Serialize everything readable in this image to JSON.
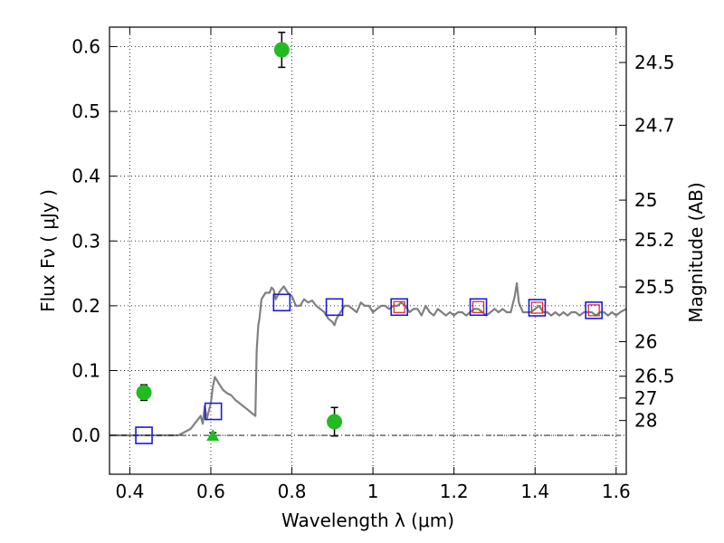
{
  "chart_data": {
    "type": "scatter",
    "xlabel": "Wavelength  λ (μm)",
    "ylabel": "Flux  Fν  ( μJy )",
    "y2label": "Magnitude (AB)",
    "xlim": [
      0.35,
      1.625
    ],
    "ylim": [
      -0.06,
      0.63
    ],
    "grid": true,
    "x_ticks": [
      {
        "value": 0.4,
        "label": "0.4"
      },
      {
        "value": 0.6,
        "label": "0.6"
      },
      {
        "value": 0.8,
        "label": "0.8"
      },
      {
        "value": 1.0,
        "label": "1"
      },
      {
        "value": 1.2,
        "label": "1.2"
      },
      {
        "value": 1.4,
        "label": "1.4"
      },
      {
        "value": 1.6,
        "label": "1.6"
      }
    ],
    "y_ticks": [
      {
        "value": 0.0,
        "label": "0.0"
      },
      {
        "value": 0.1,
        "label": "0.1"
      },
      {
        "value": 0.2,
        "label": "0.2"
      },
      {
        "value": 0.3,
        "label": "0.3"
      },
      {
        "value": 0.4,
        "label": "0.4"
      },
      {
        "value": 0.5,
        "label": "0.5"
      },
      {
        "value": 0.6,
        "label": "0.6"
      }
    ],
    "mag_ticks": [
      {
        "value": 24.5,
        "label": "24.5"
      },
      {
        "value": 24.7,
        "label": "24.7"
      },
      {
        "value": 25.0,
        "label": "25"
      },
      {
        "value": 25.2,
        "label": "25.2"
      },
      {
        "value": 25.5,
        "label": "25.5"
      },
      {
        "value": 26.0,
        "label": "26"
      },
      {
        "value": 26.5,
        "label": "26.5"
      },
      {
        "value": 27.0,
        "label": "27"
      },
      {
        "value": 28.0,
        "label": "28"
      }
    ],
    "colors": {
      "model": "#808080",
      "observed": "#22bb22",
      "model_phot": "#1a1adf",
      "model_phot_inner": "#dd2222",
      "errorbar": "#000000",
      "zero_line": "#000000"
    },
    "series": [
      {
        "type": "line",
        "points": [
          [
            0.35,
            0.0
          ],
          [
            0.52,
            0.0
          ],
          [
            0.535,
            0.005
          ],
          [
            0.55,
            0.01
          ],
          [
            0.565,
            0.022
          ],
          [
            0.575,
            0.03
          ],
          [
            0.58,
            0.018
          ],
          [
            0.585,
            0.045
          ],
          [
            0.59,
            0.025
          ],
          [
            0.6,
            0.05
          ],
          [
            0.605,
            0.075
          ],
          [
            0.61,
            0.09
          ],
          [
            0.62,
            0.08
          ],
          [
            0.63,
            0.07
          ],
          [
            0.64,
            0.065
          ],
          [
            0.65,
            0.062
          ],
          [
            0.66,
            0.055
          ],
          [
            0.67,
            0.05
          ],
          [
            0.68,
            0.045
          ],
          [
            0.69,
            0.04
          ],
          [
            0.7,
            0.035
          ],
          [
            0.71,
            0.03
          ],
          [
            0.713,
            0.13
          ],
          [
            0.717,
            0.17
          ],
          [
            0.72,
            0.18
          ],
          [
            0.725,
            0.21
          ],
          [
            0.735,
            0.22
          ],
          [
            0.745,
            0.22
          ],
          [
            0.75,
            0.228
          ],
          [
            0.755,
            0.225
          ],
          [
            0.76,
            0.21
          ],
          [
            0.77,
            0.222
          ],
          [
            0.78,
            0.23
          ],
          [
            0.79,
            0.22
          ],
          [
            0.8,
            0.215
          ],
          [
            0.81,
            0.2
          ],
          [
            0.82,
            0.2
          ],
          [
            0.83,
            0.21
          ],
          [
            0.84,
            0.205
          ],
          [
            0.85,
            0.208
          ],
          [
            0.86,
            0.2
          ],
          [
            0.87,
            0.195
          ],
          [
            0.88,
            0.19
          ],
          [
            0.89,
            0.18
          ],
          [
            0.9,
            0.175
          ],
          [
            0.905,
            0.17
          ],
          [
            0.91,
            0.18
          ],
          [
            0.92,
            0.19
          ],
          [
            0.93,
            0.2
          ],
          [
            0.94,
            0.2
          ],
          [
            0.95,
            0.195
          ],
          [
            0.96,
            0.19
          ],
          [
            0.97,
            0.205
          ],
          [
            0.98,
            0.2
          ],
          [
            0.99,
            0.2
          ],
          [
            1.0,
            0.19
          ],
          [
            1.01,
            0.195
          ],
          [
            1.02,
            0.2
          ],
          [
            1.03,
            0.2
          ],
          [
            1.04,
            0.195
          ],
          [
            1.05,
            0.2
          ],
          [
            1.06,
            0.2
          ],
          [
            1.07,
            0.205
          ],
          [
            1.08,
            0.2
          ],
          [
            1.09,
            0.19
          ],
          [
            1.1,
            0.195
          ],
          [
            1.11,
            0.195
          ],
          [
            1.12,
            0.185
          ],
          [
            1.13,
            0.2
          ],
          [
            1.14,
            0.19
          ],
          [
            1.15,
            0.185
          ],
          [
            1.16,
            0.195
          ],
          [
            1.17,
            0.19
          ],
          [
            1.18,
            0.185
          ],
          [
            1.19,
            0.19
          ],
          [
            1.2,
            0.185
          ],
          [
            1.21,
            0.19
          ],
          [
            1.22,
            0.19
          ],
          [
            1.23,
            0.185
          ],
          [
            1.24,
            0.19
          ],
          [
            1.25,
            0.195
          ],
          [
            1.26,
            0.195
          ],
          [
            1.27,
            0.19
          ],
          [
            1.28,
            0.185
          ],
          [
            1.29,
            0.19
          ],
          [
            1.3,
            0.195
          ],
          [
            1.31,
            0.19
          ],
          [
            1.32,
            0.195
          ],
          [
            1.33,
            0.19
          ],
          [
            1.34,
            0.19
          ],
          [
            1.35,
            0.215
          ],
          [
            1.355,
            0.235
          ],
          [
            1.36,
            0.205
          ],
          [
            1.37,
            0.19
          ],
          [
            1.38,
            0.19
          ],
          [
            1.39,
            0.19
          ],
          [
            1.4,
            0.195
          ],
          [
            1.41,
            0.2
          ],
          [
            1.42,
            0.19
          ],
          [
            1.43,
            0.19
          ],
          [
            1.44,
            0.185
          ],
          [
            1.45,
            0.19
          ],
          [
            1.46,
            0.185
          ],
          [
            1.47,
            0.19
          ],
          [
            1.48,
            0.185
          ],
          [
            1.49,
            0.19
          ],
          [
            1.5,
            0.19
          ],
          [
            1.51,
            0.185
          ],
          [
            1.52,
            0.19
          ],
          [
            1.53,
            0.19
          ],
          [
            1.54,
            0.19
          ],
          [
            1.55,
            0.185
          ],
          [
            1.56,
            0.19
          ],
          [
            1.57,
            0.19
          ],
          [
            1.58,
            0.185
          ],
          [
            1.59,
            0.19
          ],
          [
            1.6,
            0.185
          ],
          [
            1.61,
            0.19
          ],
          [
            1.625,
            0.195
          ]
        ]
      },
      {
        "type": "observed",
        "points": [
          {
            "x": 0.435,
            "y": 0.066,
            "err": 0.012
          },
          {
            "x": 0.775,
            "y": 0.595,
            "err": 0.027
          },
          {
            "x": 0.905,
            "y": 0.021,
            "err": 0.022
          }
        ]
      },
      {
        "type": "upper_limit",
        "points": [
          {
            "x": 0.605,
            "y": 0.0,
            "err": 0.004
          }
        ]
      },
      {
        "type": "model_photometry",
        "points": [
          {
            "x": 0.435,
            "y": 0.0
          },
          {
            "x": 0.606,
            "y": 0.037
          },
          {
            "x": 0.775,
            "y": 0.205
          },
          {
            "x": 0.905,
            "y": 0.198
          },
          {
            "x": 1.065,
            "y": 0.198
          },
          {
            "x": 1.26,
            "y": 0.198
          },
          {
            "x": 1.405,
            "y": 0.197
          },
          {
            "x": 1.545,
            "y": 0.193
          }
        ]
      },
      {
        "type": "model_photometry_inner",
        "points": [
          {
            "x": 1.065,
            "y": 0.198
          },
          {
            "x": 1.26,
            "y": 0.198
          },
          {
            "x": 1.405,
            "y": 0.197
          },
          {
            "x": 1.545,
            "y": 0.193
          }
        ]
      }
    ]
  }
}
